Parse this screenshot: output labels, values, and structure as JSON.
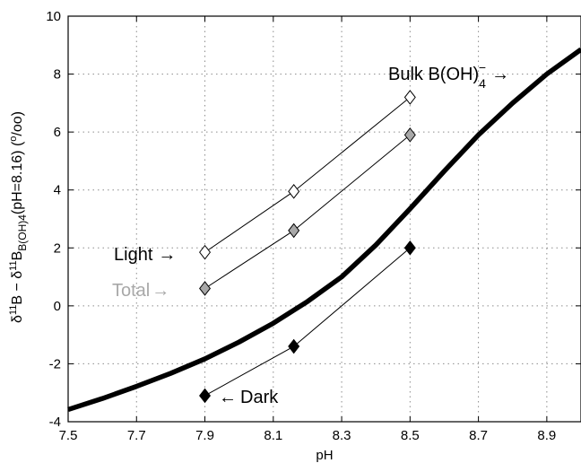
{
  "chart_data": {
    "type": "line",
    "xlabel": "pH",
    "ylabel": {
      "t1": "δ",
      "s1": "11",
      "t2": "B − δ",
      "s2": "11",
      "t3": "B",
      "sub": "B(OH)4",
      "t4": "(pH=8.16) (",
      "s3": "o",
      "t5": "/oo)"
    },
    "xlim": [
      7.5,
      9.0
    ],
    "ylim": [
      -4,
      10
    ],
    "x_ticks": [
      "7.5",
      "7.7",
      "7.9",
      "8.1",
      "8.3",
      "8.5",
      "8.7",
      "8.9"
    ],
    "y_ticks": [
      "-4",
      "-2",
      "0",
      "2",
      "4",
      "6",
      "8",
      "10"
    ],
    "grid": true,
    "colors": {
      "curve": "#000000",
      "light_fill": "#ffffff",
      "total_fill": "#a8a8a8",
      "total_label": "#a8a8a8",
      "dark_fill": "#000000",
      "grid": "#8c8c8c"
    },
    "series": [
      {
        "name": "Bulk B(OH)4−",
        "style": "thick-line",
        "x": [
          7.5,
          7.6,
          7.7,
          7.8,
          7.9,
          8.0,
          8.1,
          8.16,
          8.2,
          8.3,
          8.4,
          8.5,
          8.6,
          8.7,
          8.8,
          8.9,
          9.0
        ],
        "y": [
          -3.58,
          -3.2,
          -2.78,
          -2.33,
          -1.83,
          -1.25,
          -0.6,
          -0.15,
          0.15,
          1.0,
          2.1,
          3.35,
          4.65,
          5.9,
          7.0,
          8.0,
          8.85
        ]
      },
      {
        "name": "Light",
        "style": "open-diamond",
        "x": [
          7.9,
          8.16,
          8.5
        ],
        "y": [
          1.85,
          3.95,
          7.2
        ]
      },
      {
        "name": "Total",
        "style": "gray-diamond",
        "x": [
          7.9,
          8.16,
          8.5
        ],
        "y": [
          0.6,
          2.6,
          5.9
        ]
      },
      {
        "name": "Dark",
        "style": "filled-diamond",
        "x": [
          7.9,
          8.16,
          8.5
        ],
        "y": [
          -3.1,
          -1.4,
          2.0
        ]
      }
    ],
    "annotations": {
      "bulk": {
        "text": "Bulk B(OH)",
        "sub": "4",
        "sup": "−",
        "arrow": "→"
      },
      "light": {
        "text": "Light",
        "arrow": "→"
      },
      "total": {
        "text": "Total",
        "arrow": "→"
      },
      "dark": {
        "text": "Dark",
        "arrow": "←"
      }
    }
  }
}
